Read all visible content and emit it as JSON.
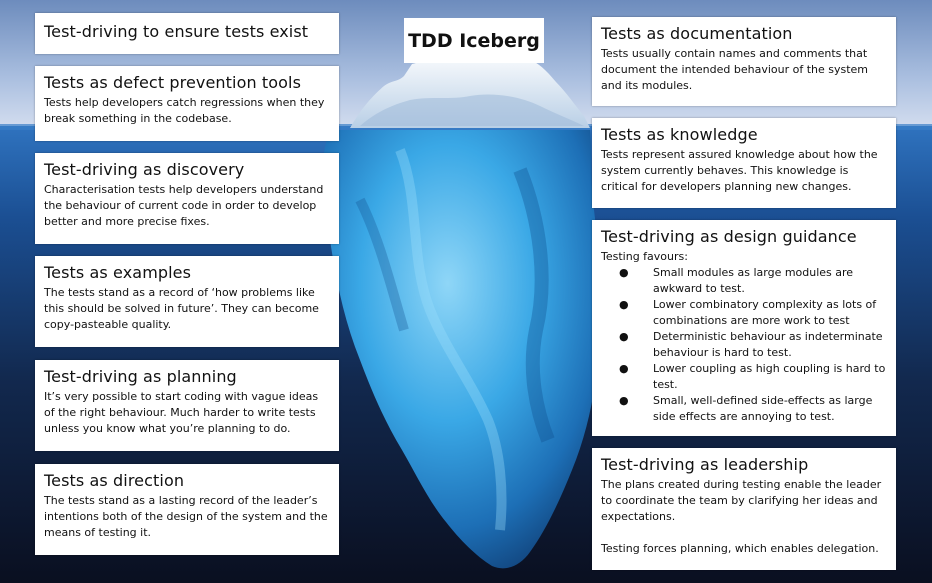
{
  "title": "TDD Iceberg",
  "colors": {
    "sky_top": "#6f8fbf",
    "sky_bottom": "#c9d6ea",
    "ocean_surface": "#2a6bb5",
    "ocean_deep": "#0b1226",
    "ice_light": "#e8f3fb",
    "ice_underwater": "#2f9ee0",
    "card_background": "#ffffff"
  },
  "cards": {
    "tests_exist": {
      "title": "Test-driving to ensure tests exist"
    },
    "defect_prevention": {
      "title": "Tests as defect prevention tools",
      "body": "Tests help developers catch regressions when they break something in the codebase."
    },
    "discovery": {
      "title": "Test-driving as discovery",
      "body": "Characterisation tests help developers understand the behaviour of current code in order to develop better and more precise fixes."
    },
    "examples": {
      "title": "Tests as examples",
      "body": "The tests stand as a record of ‘how problems like this should be solved in future’.  They can become copy-pasteable quality."
    },
    "planning": {
      "title": "Test-driving as planning",
      "body": "It’s very possible to start coding with vague ideas of the right behaviour. Much harder to write tests unless you know what you’re planning to do."
    },
    "direction": {
      "title": "Tests as direction",
      "body": "The tests stand as a lasting record of the leader’s intentions both of the design of the system and the means of testing it."
    },
    "documentation": {
      "title": "Tests as documentation",
      "body": "Tests usually contain names and comments that document the intended behaviour of the system and its modules."
    },
    "knowledge": {
      "title": "Tests as knowledge",
      "body": "Tests represent assured knowledge about how the system currently behaves. This knowledge is critical for developers planning new changes."
    },
    "design_guidance": {
      "title": "Test-driving as design guidance",
      "intro": "Testing favours:",
      "bullet_symbol": "●",
      "items": [
        "Small modules as large modules are awkward to test.",
        "Lower combinatory complexity as lots of combinations are more work to test",
        "Deterministic behaviour as indeterminate behaviour is hard to test.",
        "Lower coupling as high coupling is hard to test.",
        "Small, well-defined side-effects as large side effects are annoying to test."
      ]
    },
    "leadership": {
      "title": "Test-driving as leadership",
      "body": "The plans created during testing enable the leader to coordinate the team by clarifying her ideas and expectations.",
      "body2": "Testing forces planning, which enables delegation."
    }
  }
}
